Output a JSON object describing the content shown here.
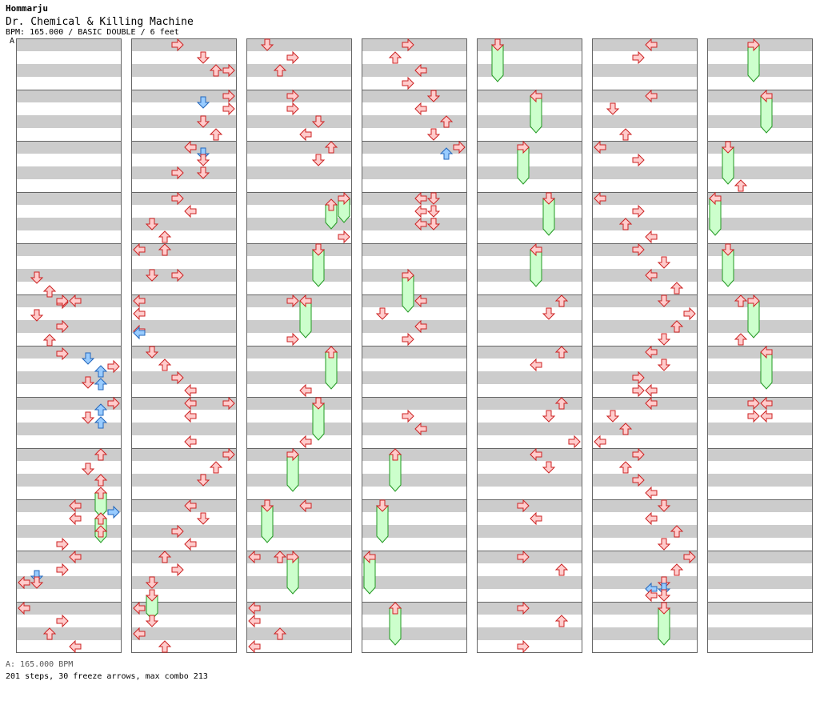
{
  "header": {
    "artist": "Hommarju",
    "title": "Dr. Chemical & Killing Machine",
    "info": "BPM: 165.000 / BASIC DOUBLE / 6 feet",
    "bpm_marker_label": "A"
  },
  "footer": {
    "bpm_line": "A: 165.000 BPM",
    "stats": "201 steps, 30 freeze arrows, max combo 213"
  },
  "colors": {
    "stripe_gray": "#cccccc",
    "stripe_white": "#ffffff",
    "arrow_red_fill": "#ffcccc",
    "arrow_red_stroke": "#cc2222",
    "arrow_blue_fill": "#99ccff",
    "arrow_blue_stroke": "#2266bb",
    "freeze_fill": "#ccffcc",
    "freeze_stroke": "#229922"
  },
  "chart_data": {
    "type": "stepchart",
    "lanes": 8,
    "columns": 7,
    "measures_per_column": 12,
    "rows_per_measure": 4,
    "lane_directions": [
      "left",
      "down",
      "up",
      "right",
      "left",
      "down",
      "up",
      "right"
    ],
    "notes": [
      [
        0,
        5,
        2,
        3,
        1
      ],
      [
        0,
        5,
        3,
        4,
        2
      ],
      [
        0,
        5,
        4,
        2,
        3
      ],
      [
        0,
        5,
        4,
        0,
        3
      ],
      [
        0,
        6,
        0,
        0,
        4
      ],
      [
        0,
        6,
        1,
        2,
        1
      ],
      [
        0,
        6,
        2,
        0,
        3
      ],
      [
        0,
        6,
        3,
        1,
        2
      ],
      [
        0,
        7,
        0,
        2,
        3
      ],
      [
        0,
        7,
        0,
        8,
        5
      ],
      [
        0,
        7,
        1,
        2,
        7
      ],
      [
        0,
        7,
        1,
        8,
        6
      ],
      [
        0,
        7,
        2,
        6,
        5
      ],
      [
        0,
        7,
        2,
        8,
        6
      ],
      [
        0,
        8,
        0,
        0,
        7
      ],
      [
        0,
        8,
        0,
        8,
        6
      ],
      [
        0,
        8,
        1,
        2,
        5
      ],
      [
        0,
        8,
        1,
        8,
        6
      ],
      [
        0,
        9,
        0,
        0,
        6
      ],
      [
        0,
        9,
        1,
        2,
        5
      ],
      [
        0,
        9,
        2,
        0,
        6
      ],
      [
        0,
        10,
        0,
        0,
        4
      ],
      [
        0,
        10,
        0,
        8,
        7
      ],
      [
        0,
        10,
        1,
        0,
        4
      ],
      [
        0,
        10,
        2,
        0,
        6
      ],
      [
        0,
        10,
        3,
        0,
        3
      ],
      [
        0,
        11,
        0,
        0,
        4
      ],
      [
        0,
        11,
        1,
        0,
        3
      ],
      [
        0,
        11,
        1,
        8,
        1
      ],
      [
        0,
        11,
        2,
        0,
        0
      ],
      [
        0,
        11,
        2,
        0,
        1
      ],
      [
        0,
        12,
        0,
        0,
        0
      ],
      [
        0,
        12,
        1,
        0,
        3
      ],
      [
        0,
        12,
        2,
        0,
        2
      ],
      [
        0,
        12,
        3,
        0,
        4
      ],
      [
        1,
        1,
        0,
        0,
        3
      ],
      [
        1,
        1,
        1,
        0,
        5
      ],
      [
        1,
        1,
        2,
        0,
        6
      ],
      [
        1,
        1,
        2,
        0,
        7
      ],
      [
        1,
        2,
        0,
        0,
        7
      ],
      [
        1,
        2,
        0,
        8,
        5
      ],
      [
        1,
        2,
        1,
        0,
        7
      ],
      [
        1,
        2,
        2,
        0,
        5
      ],
      [
        1,
        2,
        3,
        0,
        6
      ],
      [
        1,
        3,
        0,
        0,
        4
      ],
      [
        1,
        3,
        0,
        8,
        5
      ],
      [
        1,
        3,
        1,
        0,
        5
      ],
      [
        1,
        3,
        2,
        0,
        3
      ],
      [
        1,
        3,
        2,
        0,
        5
      ],
      [
        1,
        4,
        0,
        0,
        3
      ],
      [
        1,
        4,
        1,
        0,
        4
      ],
      [
        1,
        4,
        2,
        0,
        1
      ],
      [
        1,
        4,
        3,
        0,
        2
      ],
      [
        1,
        5,
        0,
        0,
        0
      ],
      [
        1,
        5,
        0,
        0,
        2
      ],
      [
        1,
        5,
        2,
        0,
        1
      ],
      [
        1,
        5,
        2,
        0,
        3
      ],
      [
        1,
        6,
        0,
        0,
        0
      ],
      [
        1,
        6,
        1,
        0,
        0
      ],
      [
        1,
        6,
        2,
        6,
        0
      ],
      [
        1,
        6,
        2,
        8,
        0
      ],
      [
        1,
        7,
        0,
        0,
        1
      ],
      [
        1,
        7,
        1,
        0,
        2
      ],
      [
        1,
        7,
        2,
        0,
        3
      ],
      [
        1,
        7,
        3,
        0,
        4
      ],
      [
        1,
        8,
        0,
        0,
        4
      ],
      [
        1,
        8,
        0,
        0,
        7
      ],
      [
        1,
        8,
        1,
        0,
        4
      ],
      [
        1,
        8,
        3,
        0,
        4
      ],
      [
        1,
        9,
        0,
        0,
        7
      ],
      [
        1,
        9,
        1,
        0,
        6
      ],
      [
        1,
        9,
        2,
        0,
        5
      ],
      [
        1,
        10,
        0,
        0,
        4
      ],
      [
        1,
        10,
        1,
        0,
        5
      ],
      [
        1,
        10,
        2,
        0,
        3
      ],
      [
        1,
        10,
        3,
        0,
        4
      ],
      [
        1,
        11,
        0,
        0,
        2
      ],
      [
        1,
        11,
        1,
        0,
        3
      ],
      [
        1,
        11,
        2,
        0,
        1
      ],
      [
        1,
        12,
        0,
        0,
        0
      ],
      [
        1,
        12,
        1,
        0,
        1
      ],
      [
        1,
        12,
        2,
        0,
        0
      ],
      [
        1,
        12,
        3,
        0,
        2
      ],
      [
        2,
        1,
        0,
        0,
        1
      ],
      [
        2,
        1,
        1,
        0,
        3
      ],
      [
        2,
        1,
        2,
        0,
        2
      ],
      [
        2,
        2,
        0,
        0,
        3
      ],
      [
        2,
        2,
        1,
        0,
        3
      ],
      [
        2,
        2,
        2,
        0,
        5
      ],
      [
        2,
        2,
        3,
        0,
        4
      ],
      [
        2,
        3,
        0,
        0,
        6
      ],
      [
        2,
        3,
        1,
        0,
        5
      ],
      [
        2,
        4,
        3,
        0,
        7
      ],
      [
        2,
        6,
        0,
        0,
        3
      ],
      [
        2,
        6,
        3,
        0,
        3
      ],
      [
        2,
        7,
        3,
        0,
        4
      ],
      [
        2,
        8,
        3,
        0,
        4
      ],
      [
        2,
        10,
        0,
        0,
        4
      ],
      [
        2,
        11,
        0,
        0,
        0
      ],
      [
        2,
        11,
        0,
        0,
        2
      ],
      [
        2,
        12,
        0,
        0,
        0
      ],
      [
        2,
        12,
        1,
        0,
        0
      ],
      [
        2,
        12,
        2,
        0,
        2
      ],
      [
        2,
        12,
        3,
        0,
        0
      ],
      [
        3,
        1,
        0,
        0,
        3
      ],
      [
        3,
        1,
        1,
        0,
        2
      ],
      [
        3,
        1,
        2,
        0,
        4
      ],
      [
        3,
        1,
        3,
        0,
        3
      ],
      [
        3,
        2,
        0,
        0,
        5
      ],
      [
        3,
        2,
        1,
        0,
        4
      ],
      [
        3,
        2,
        2,
        0,
        6
      ],
      [
        3,
        2,
        3,
        0,
        5
      ],
      [
        3,
        3,
        0,
        0,
        7
      ],
      [
        3,
        3,
        0,
        8,
        6
      ],
      [
        3,
        4,
        0,
        0,
        4
      ],
      [
        3,
        4,
        0,
        0,
        5
      ],
      [
        3,
        4,
        1,
        0,
        4
      ],
      [
        3,
        4,
        1,
        0,
        5
      ],
      [
        3,
        4,
        2,
        0,
        4
      ],
      [
        3,
        4,
        2,
        0,
        5
      ],
      [
        3,
        6,
        0,
        0,
        4
      ],
      [
        3,
        6,
        1,
        0,
        1
      ],
      [
        3,
        6,
        2,
        0,
        4
      ],
      [
        3,
        6,
        3,
        0,
        3
      ],
      [
        3,
        8,
        1,
        0,
        3
      ],
      [
        3,
        8,
        2,
        0,
        4
      ],
      [
        4,
        6,
        0,
        0,
        6
      ],
      [
        4,
        6,
        1,
        0,
        5
      ],
      [
        4,
        7,
        0,
        0,
        6
      ],
      [
        4,
        7,
        1,
        0,
        4
      ],
      [
        4,
        8,
        0,
        0,
        6
      ],
      [
        4,
        8,
        1,
        0,
        5
      ],
      [
        4,
        8,
        3,
        0,
        7
      ],
      [
        4,
        9,
        0,
        0,
        4
      ],
      [
        4,
        9,
        1,
        0,
        5
      ],
      [
        4,
        10,
        0,
        0,
        3
      ],
      [
        4,
        10,
        1,
        0,
        4
      ],
      [
        4,
        11,
        0,
        0,
        3
      ],
      [
        4,
        11,
        1,
        0,
        6
      ],
      [
        4,
        12,
        0,
        0,
        3
      ],
      [
        4,
        12,
        1,
        0,
        6
      ],
      [
        4,
        12,
        3,
        0,
        3
      ],
      [
        5,
        1,
        0,
        0,
        4
      ],
      [
        5,
        1,
        1,
        0,
        3
      ],
      [
        5,
        2,
        0,
        0,
        4
      ],
      [
        5,
        2,
        1,
        0,
        1
      ],
      [
        5,
        2,
        3,
        0,
        2
      ],
      [
        5,
        3,
        0,
        0,
        0
      ],
      [
        5,
        3,
        1,
        0,
        3
      ],
      [
        5,
        4,
        0,
        0,
        0
      ],
      [
        5,
        4,
        1,
        0,
        3
      ],
      [
        5,
        4,
        2,
        0,
        2
      ],
      [
        5,
        4,
        3,
        0,
        4
      ],
      [
        5,
        5,
        0,
        0,
        3
      ],
      [
        5,
        5,
        1,
        0,
        5
      ],
      [
        5,
        5,
        2,
        0,
        4
      ],
      [
        5,
        5,
        3,
        0,
        6
      ],
      [
        5,
        6,
        0,
        0,
        5
      ],
      [
        5,
        6,
        1,
        0,
        7
      ],
      [
        5,
        6,
        2,
        0,
        6
      ],
      [
        5,
        6,
        3,
        0,
        5
      ],
      [
        5,
        7,
        0,
        0,
        4
      ],
      [
        5,
        7,
        1,
        0,
        5
      ],
      [
        5,
        7,
        2,
        0,
        3
      ],
      [
        5,
        7,
        3,
        0,
        3
      ],
      [
        5,
        7,
        3,
        0,
        4
      ],
      [
        5,
        8,
        0,
        0,
        4
      ],
      [
        5,
        8,
        1,
        0,
        1
      ],
      [
        5,
        8,
        2,
        0,
        2
      ],
      [
        5,
        8,
        3,
        0,
        0
      ],
      [
        5,
        9,
        0,
        0,
        3
      ],
      [
        5,
        9,
        1,
        0,
        2
      ],
      [
        5,
        9,
        2,
        0,
        3
      ],
      [
        5,
        9,
        3,
        0,
        4
      ],
      [
        5,
        10,
        0,
        0,
        5
      ],
      [
        5,
        10,
        1,
        0,
        4
      ],
      [
        5,
        10,
        2,
        0,
        6
      ],
      [
        5,
        10,
        3,
        0,
        5
      ],
      [
        5,
        11,
        0,
        0,
        7
      ],
      [
        5,
        11,
        1,
        0,
        6
      ],
      [
        5,
        11,
        2,
        0,
        5
      ],
      [
        5,
        11,
        2,
        8,
        4
      ],
      [
        5,
        11,
        2,
        8,
        5
      ],
      [
        5,
        11,
        3,
        0,
        4
      ],
      [
        5,
        11,
        3,
        0,
        5
      ],
      [
        6,
        3,
        3,
        0,
        2
      ],
      [
        6,
        6,
        0,
        0,
        2
      ],
      [
        6,
        6,
        3,
        0,
        2
      ],
      [
        6,
        8,
        0,
        0,
        3
      ],
      [
        6,
        8,
        0,
        0,
        4
      ],
      [
        6,
        8,
        1,
        0,
        3
      ],
      [
        6,
        8,
        1,
        0,
        4
      ]
    ],
    "freezes": [
      [
        0,
        9,
        3,
        0,
        6,
        1
      ],
      [
        0,
        10,
        1,
        0,
        6,
        1
      ],
      [
        1,
        11,
        3,
        0,
        1,
        1
      ],
      [
        2,
        4,
        0,
        0,
        7,
        1
      ],
      [
        2,
        4,
        0,
        8,
        6,
        1
      ],
      [
        2,
        5,
        0,
        0,
        5,
        2
      ],
      [
        2,
        6,
        0,
        0,
        4,
        2
      ],
      [
        2,
        7,
        0,
        0,
        6,
        2
      ],
      [
        2,
        8,
        0,
        0,
        5,
        2
      ],
      [
        2,
        9,
        0,
        0,
        3,
        2
      ],
      [
        2,
        10,
        0,
        0,
        1,
        2
      ],
      [
        2,
        11,
        0,
        0,
        3,
        2
      ],
      [
        3,
        5,
        2,
        0,
        3,
        2
      ],
      [
        3,
        9,
        0,
        0,
        2,
        2
      ],
      [
        3,
        10,
        0,
        0,
        1,
        2
      ],
      [
        3,
        11,
        0,
        0,
        0,
        2
      ],
      [
        3,
        12,
        0,
        0,
        2,
        2
      ],
      [
        4,
        1,
        0,
        0,
        1,
        2
      ],
      [
        4,
        2,
        0,
        0,
        4,
        2
      ],
      [
        4,
        3,
        0,
        0,
        3,
        2
      ],
      [
        4,
        4,
        0,
        0,
        5,
        2
      ],
      [
        4,
        5,
        0,
        0,
        4,
        2
      ],
      [
        5,
        12,
        0,
        0,
        5,
        2
      ],
      [
        6,
        1,
        0,
        0,
        3,
        2
      ],
      [
        6,
        2,
        0,
        0,
        4,
        2
      ],
      [
        6,
        3,
        0,
        0,
        1,
        2
      ],
      [
        6,
        4,
        0,
        0,
        0,
        2
      ],
      [
        6,
        5,
        0,
        0,
        1,
        2
      ],
      [
        6,
        6,
        0,
        0,
        3,
        2
      ],
      [
        6,
        7,
        0,
        0,
        4,
        2
      ]
    ]
  }
}
